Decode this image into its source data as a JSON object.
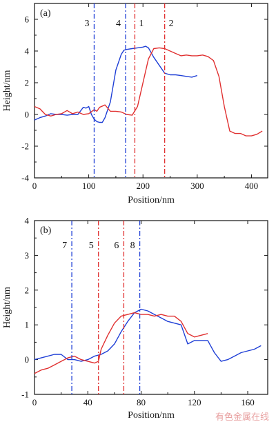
{
  "chart_data": [
    {
      "type": "line",
      "panel_label": "(a)",
      "xlabel": "Position/nm",
      "ylabel": "Height/nm",
      "xlim": [
        0,
        430
      ],
      "ylim": [
        -4,
        7
      ],
      "xticks": [
        0,
        100,
        200,
        300,
        400
      ],
      "yticks": [
        -4,
        -2,
        0,
        2,
        4,
        6
      ],
      "series": [
        {
          "color": "#1f3fd6",
          "x": [
            0,
            10,
            20,
            30,
            40,
            50,
            60,
            70,
            80,
            90,
            95,
            100,
            105,
            110,
            115,
            120,
            125,
            130,
            140,
            150,
            160,
            165,
            170,
            180,
            190,
            200,
            205,
            210,
            220,
            230,
            240,
            250,
            260,
            270,
            280,
            290,
            300
          ],
          "y": [
            -0.35,
            -0.2,
            -0.1,
            0.05,
            0.0,
            0.0,
            -0.05,
            0.0,
            0.0,
            0.45,
            0.4,
            0.5,
            0.0,
            -0.3,
            -0.45,
            -0.5,
            -0.5,
            -0.2,
            0.8,
            2.8,
            3.8,
            4.05,
            4.1,
            4.15,
            4.2,
            4.25,
            4.3,
            4.2,
            3.6,
            3.1,
            2.6,
            2.5,
            2.5,
            2.45,
            2.4,
            2.35,
            2.45
          ]
        },
        {
          "color": "#e03030",
          "x": [
            0,
            10,
            20,
            30,
            40,
            50,
            60,
            70,
            80,
            90,
            100,
            110,
            115,
            120,
            130,
            140,
            150,
            160,
            170,
            180,
            190,
            200,
            210,
            220,
            230,
            240,
            250,
            260,
            270,
            280,
            290,
            300,
            310,
            320,
            330,
            340,
            350,
            360,
            370,
            380,
            390,
            400,
            410,
            420
          ],
          "y": [
            0.5,
            0.35,
            0.0,
            -0.1,
            0.0,
            0.05,
            0.25,
            0.05,
            0.15,
            0.0,
            0.05,
            0.3,
            0.2,
            0.45,
            0.6,
            0.2,
            0.2,
            0.15,
            0.0,
            -0.05,
            0.5,
            2.0,
            3.5,
            4.15,
            4.2,
            4.15,
            4.0,
            3.85,
            3.7,
            3.75,
            3.7,
            3.7,
            3.75,
            3.65,
            3.4,
            2.4,
            0.5,
            -1.05,
            -1.2,
            -1.2,
            -1.35,
            -1.35,
            -1.25,
            -1.05
          ]
        }
      ],
      "vlines": [
        {
          "label": "3",
          "x": 110,
          "color": "#1f3fd6"
        },
        {
          "label": "4",
          "x": 168,
          "color": "#1f3fd6"
        },
        {
          "label": "1",
          "x": 185,
          "color": "#e03030"
        },
        {
          "label": "2",
          "x": 240,
          "color": "#e03030"
        }
      ]
    },
    {
      "type": "line",
      "panel_label": "(b)",
      "xlabel": "Position/nm",
      "ylabel": "Height/nm",
      "xlim": [
        0,
        175
      ],
      "ylim": [
        -1,
        4
      ],
      "xticks": [
        0,
        40,
        80,
        120,
        160
      ],
      "yticks": [
        -1,
        0,
        1,
        2,
        3,
        4
      ],
      "series": [
        {
          "color": "#1f3fd6",
          "x": [
            0,
            5,
            10,
            15,
            20,
            25,
            30,
            35,
            40,
            45,
            50,
            55,
            60,
            65,
            70,
            75,
            80,
            85,
            90,
            95,
            100,
            105,
            110,
            115,
            120,
            125,
            130,
            135,
            140,
            145,
            150,
            155,
            160,
            165,
            170
          ],
          "y": [
            0.0,
            0.05,
            0.1,
            0.15,
            0.15,
            0.0,
            0.0,
            -0.05,
            0.0,
            0.1,
            0.15,
            0.25,
            0.45,
            0.8,
            1.1,
            1.35,
            1.45,
            1.4,
            1.3,
            1.2,
            1.1,
            1.05,
            1.0,
            0.45,
            0.55,
            0.55,
            0.55,
            0.2,
            -0.05,
            0.0,
            0.1,
            0.2,
            0.25,
            0.3,
            0.4
          ]
        },
        {
          "color": "#e03030",
          "x": [
            0,
            5,
            10,
            15,
            20,
            25,
            30,
            35,
            40,
            45,
            48,
            50,
            55,
            60,
            65,
            70,
            75,
            80,
            85,
            90,
            95,
            100,
            105,
            110,
            115,
            120,
            125,
            130
          ],
          "y": [
            -0.4,
            -0.3,
            -0.25,
            -0.15,
            -0.05,
            0.05,
            0.1,
            0.0,
            -0.05,
            -0.1,
            -0.05,
            0.3,
            0.7,
            1.05,
            1.25,
            1.3,
            1.35,
            1.3,
            1.3,
            1.25,
            1.3,
            1.25,
            1.25,
            1.1,
            0.75,
            0.65,
            0.7,
            0.75
          ]
        }
      ],
      "vlines": [
        {
          "label": "7",
          "x": 28,
          "color": "#1f3fd6"
        },
        {
          "label": "5",
          "x": 48,
          "color": "#e03030"
        },
        {
          "label": "6",
          "x": 67,
          "color": "#e03030"
        },
        {
          "label": "8",
          "x": 79,
          "color": "#1f3fd6"
        }
      ]
    }
  ],
  "watermark": "有色金属在线"
}
